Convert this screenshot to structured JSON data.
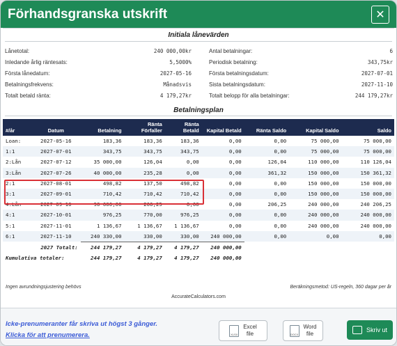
{
  "window": {
    "title": "Förhandsgranska utskrift",
    "close_glyph": "✕"
  },
  "initial": {
    "heading": "Initiala lånevärden",
    "left": [
      {
        "k": "Lånetotal:",
        "v": "240 000,00kr"
      },
      {
        "k": "Inledande årlig räntesats:",
        "v": "5,5000%"
      },
      {
        "k": "Första lånedatum:",
        "v": "2027-05-16"
      },
      {
        "k": "Betalningsfrekvens:",
        "v": "Månadsvis"
      },
      {
        "k": "Totalt betald ränta:",
        "v": "4 179,27kr"
      }
    ],
    "right": [
      {
        "k": "Antal betalningar:",
        "v": "6"
      },
      {
        "k": "Periodisk betalning:",
        "v": "343,75kr"
      },
      {
        "k": "Första betalningsdatum:",
        "v": "2027-07-01"
      },
      {
        "k": "Sista betalningsdatum:",
        "v": "2027-11-10"
      },
      {
        "k": "Totalt belopp för alla betalningar:",
        "v": "244 179,27kr"
      }
    ]
  },
  "plan": {
    "heading": "Betalningsplan",
    "headers": [
      "#/år",
      "Datum",
      "Betalning",
      "Ränta Förfaller",
      "Ränta Betald",
      "Kapital Betald",
      "Ränta Saldo",
      "Kapital Saldo",
      "Saldo"
    ],
    "rows": [
      [
        "Loan:",
        "2027-05-16",
        "183,36",
        "183,36",
        "183,36",
        "0,00",
        "0,00",
        "75 000,00",
        "75 000,00"
      ],
      [
        "1:1",
        "2027-07-01",
        "343,75",
        "343,75",
        "343,75",
        "0,00",
        "0,00",
        "75 000,00",
        "75 000,00"
      ],
      [
        "2:Lån",
        "2027-07-12",
        "35 000,00",
        "126,04",
        "0,00",
        "0,00",
        "126,04",
        "110 000,00",
        "110 126,04"
      ],
      [
        "3:Lån",
        "2027-07-26",
        "40 000,00",
        "235,28",
        "0,00",
        "0,00",
        "361,32",
        "150 000,00",
        "150 361,32"
      ],
      [
        "2:1",
        "2027-08-01",
        "498,82",
        "137,50",
        "498,82",
        "0,00",
        "0,00",
        "150 000,00",
        "150 000,00"
      ],
      [
        "3:1",
        "2027-09-01",
        "710,42",
        "710,42",
        "710,42",
        "0,00",
        "0,00",
        "150 000,00",
        "150 000,00"
      ],
      [
        "4:Lån",
        "2027-09-10",
        "90 000,00",
        "206,25",
        "0,00",
        "0,00",
        "206,25",
        "240 000,00",
        "240 206,25"
      ],
      [
        "4:1",
        "2027-10-01",
        "976,25",
        "770,00",
        "976,25",
        "0,00",
        "0,00",
        "240 000,00",
        "240 000,00"
      ],
      [
        "5:1",
        "2027-11-01",
        "1 136,67",
        "1 136,67",
        "1 136,67",
        "0,00",
        "0,00",
        "240 000,00",
        "240 000,00"
      ],
      [
        "6:1",
        "2027-11-10",
        "240 330,00",
        "330,00",
        "330,00",
        "240 000,00",
        "0,00",
        "0,00",
        "0,00"
      ]
    ],
    "totals": [
      [
        "",
        "2027 Totalt:",
        "244 179,27",
        "4 179,27",
        "4 179,27",
        "240 000,00",
        "",
        "",
        ""
      ],
      [
        "Kumulativa totaler:",
        "",
        "244 179,27",
        "4 179,27",
        "4 179,27",
        "240 000,00",
        "",
        "",
        ""
      ]
    ]
  },
  "notes": {
    "rounding": "Ingen avrundningsjustering behövs",
    "method": "Beräkningsmetod: US-regeln, 360 dagar per år",
    "site": "AccurateCalculators.com"
  },
  "footer": {
    "notice_line1": "Icke-prenumeranter får skriva ut högst 3 gånger.",
    "notice_link": "Klicka för att prenumerera.",
    "excel_label": [
      "Excel",
      "file"
    ],
    "excel_icon_text": "XLSX",
    "word_label": [
      "Word",
      "file"
    ],
    "word_icon_text": "DOCX",
    "print_label": "Skriv ut"
  },
  "colors": {
    "accent": "#1e8a57",
    "table_header": "#1d2b4f",
    "highlight": "#d93036",
    "link": "#3b5bd6"
  }
}
